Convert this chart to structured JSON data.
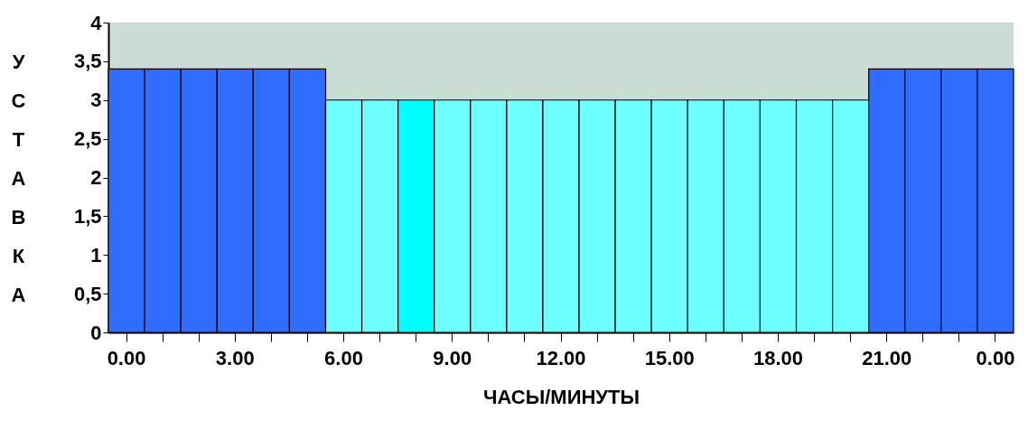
{
  "chart_data": {
    "type": "bar",
    "xlabel": "ЧАСЫ/МИНУТЫ",
    "ylabel": "УСТАВКА",
    "categories": [
      "0.00",
      null,
      null,
      "3.00",
      null,
      null,
      "6.00",
      null,
      null,
      "9.00",
      null,
      null,
      "12.00",
      null,
      null,
      "15.00",
      null,
      null,
      "18.00",
      null,
      null,
      "21.00",
      null,
      null,
      "0.00"
    ],
    "values": [
      3.4,
      3.4,
      3.4,
      3.4,
      3.4,
      3.4,
      3,
      3,
      3,
      3,
      3,
      3,
      3,
      3,
      3,
      3,
      3,
      3,
      3,
      3,
      3,
      3.4,
      3.4,
      3.4,
      3.4
    ],
    "colors": [
      "#2e6dff",
      "#2e6dff",
      "#2e6dff",
      "#2e6dff",
      "#2e6dff",
      "#2e6dff",
      "#6dffff",
      "#6dffff",
      "#00ffff",
      "#6dffff",
      "#6dffff",
      "#6dffff",
      "#6dffff",
      "#6dffff",
      "#6dffff",
      "#6dffff",
      "#6dffff",
      "#6dffff",
      "#6dffff",
      "#6dffff",
      "#6dffff",
      "#2e6dff",
      "#2e6dff",
      "#2e6dff",
      "#2e6dff"
    ],
    "ylim": [
      0,
      4
    ],
    "yticks": [
      0,
      {
        "value": 0.5,
        "label": "0,5"
      },
      1,
      {
        "value": 1.5,
        "label": "1,5"
      },
      2,
      {
        "value": 2.5,
        "label": "2,5"
      },
      3,
      {
        "value": 3.5,
        "label": "3,5"
      },
      4
    ],
    "grid": false,
    "legend": false
  }
}
